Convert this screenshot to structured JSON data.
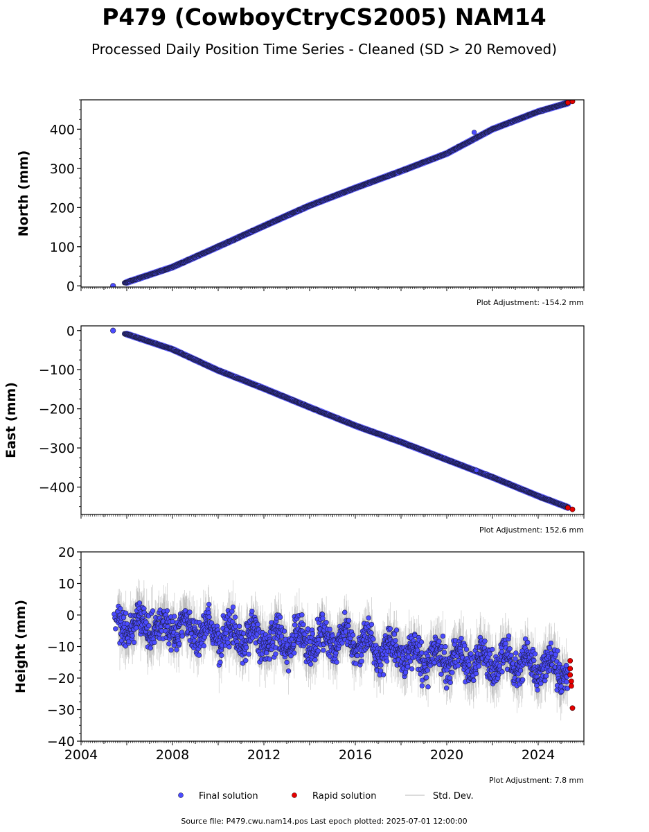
{
  "figure": {
    "title": "P479 (CowboyCtryCS2005) NAM14",
    "subtitle": "Processed Daily Position Time Series - Cleaned (SD > 20 Removed)",
    "source": "Source file: P479.cwu.nam14.pos  Last epoch plotted: 2025-07-01 12:00:00"
  },
  "legend": [
    {
      "label": "Final solution",
      "color": "#4b4bff",
      "kind": "dot"
    },
    {
      "label": "Rapid solution",
      "color": "#e60000",
      "kind": "dot"
    },
    {
      "label": "Std. Dev.",
      "color": "#bdbdbd",
      "kind": "line"
    }
  ],
  "colors": {
    "final": "#4b4bff",
    "rapid": "#e60000",
    "stddev": "#9a9a9a",
    "edge": "#1a1a3a"
  },
  "chart_data": [
    {
      "type": "scatter",
      "ylabel": "North (mm)",
      "xlim": [
        2004,
        2026
      ],
      "ylim": [
        -3,
        475
      ],
      "yticks": [
        0,
        100,
        200,
        300,
        400
      ],
      "show_xtick_labels": false,
      "adjustment": "Plot Adjustment: -154.2 mm",
      "series": [
        {
          "name": "Final solution",
          "x": [
            2005.4,
            2006.0,
            2008.0,
            2010.0,
            2012.0,
            2014.0,
            2016.0,
            2018.0,
            2020.0,
            2022.0,
            2024.0,
            2025.3
          ],
          "y": [
            0,
            9,
            48,
            100,
            153,
            205,
            250,
            293,
            338,
            400,
            445,
            467
          ]
        },
        {
          "name": "Rapid solution",
          "x": [
            2025.3,
            2025.5
          ],
          "y": [
            468,
            471
          ]
        }
      ]
    },
    {
      "type": "scatter",
      "ylabel": "East (mm)",
      "xlim": [
        2004,
        2026
      ],
      "ylim": [
        -470,
        12
      ],
      "yticks": [
        0,
        -100,
        -200,
        -300,
        -400
      ],
      "show_xtick_labels": false,
      "adjustment": "Plot Adjustment: 152.6 mm",
      "series": [
        {
          "name": "Final solution",
          "x": [
            2005.4,
            2006.0,
            2008.0,
            2010.0,
            2012.0,
            2014.0,
            2016.0,
            2018.0,
            2020.0,
            2022.0,
            2024.0,
            2025.3
          ],
          "y": [
            0,
            -9,
            -48,
            -102,
            -148,
            -196,
            -243,
            -285,
            -330,
            -375,
            -423,
            -452
          ]
        },
        {
          "name": "Rapid solution",
          "x": [
            2025.3,
            2025.5
          ],
          "y": [
            -453,
            -457
          ]
        }
      ]
    },
    {
      "type": "scatter",
      "ylabel": "Height (mm)",
      "xlim": [
        2004,
        2026
      ],
      "ylim": [
        -40,
        20
      ],
      "yticks": [
        20,
        10,
        0,
        -10,
        -20,
        -30,
        -40
      ],
      "xticks": [
        2004,
        2008,
        2012,
        2016,
        2020,
        2024
      ],
      "show_xtick_labels": true,
      "adjustment": "Plot Adjustment: 7.8 mm",
      "series": [
        {
          "name": "Final solution",
          "trend_x": [
            2006.0,
            2008.0,
            2010.0,
            2012.0,
            2014.0,
            2016.0,
            2018.0,
            2020.0,
            2022.0,
            2024.0,
            2025.3
          ],
          "trend_y": [
            -3,
            -4,
            -6,
            -8,
            -8,
            -8,
            -12,
            -14,
            -14,
            -16,
            -18
          ],
          "scatter_mm": 5.5
        },
        {
          "name": "Rapid solution",
          "x": [
            2025.4,
            2025.4,
            2025.4,
            2025.45,
            2025.45,
            2025.5
          ],
          "y": [
            -14.5,
            -17,
            -19,
            -21,
            -22.5,
            -29.5
          ]
        }
      ]
    }
  ]
}
